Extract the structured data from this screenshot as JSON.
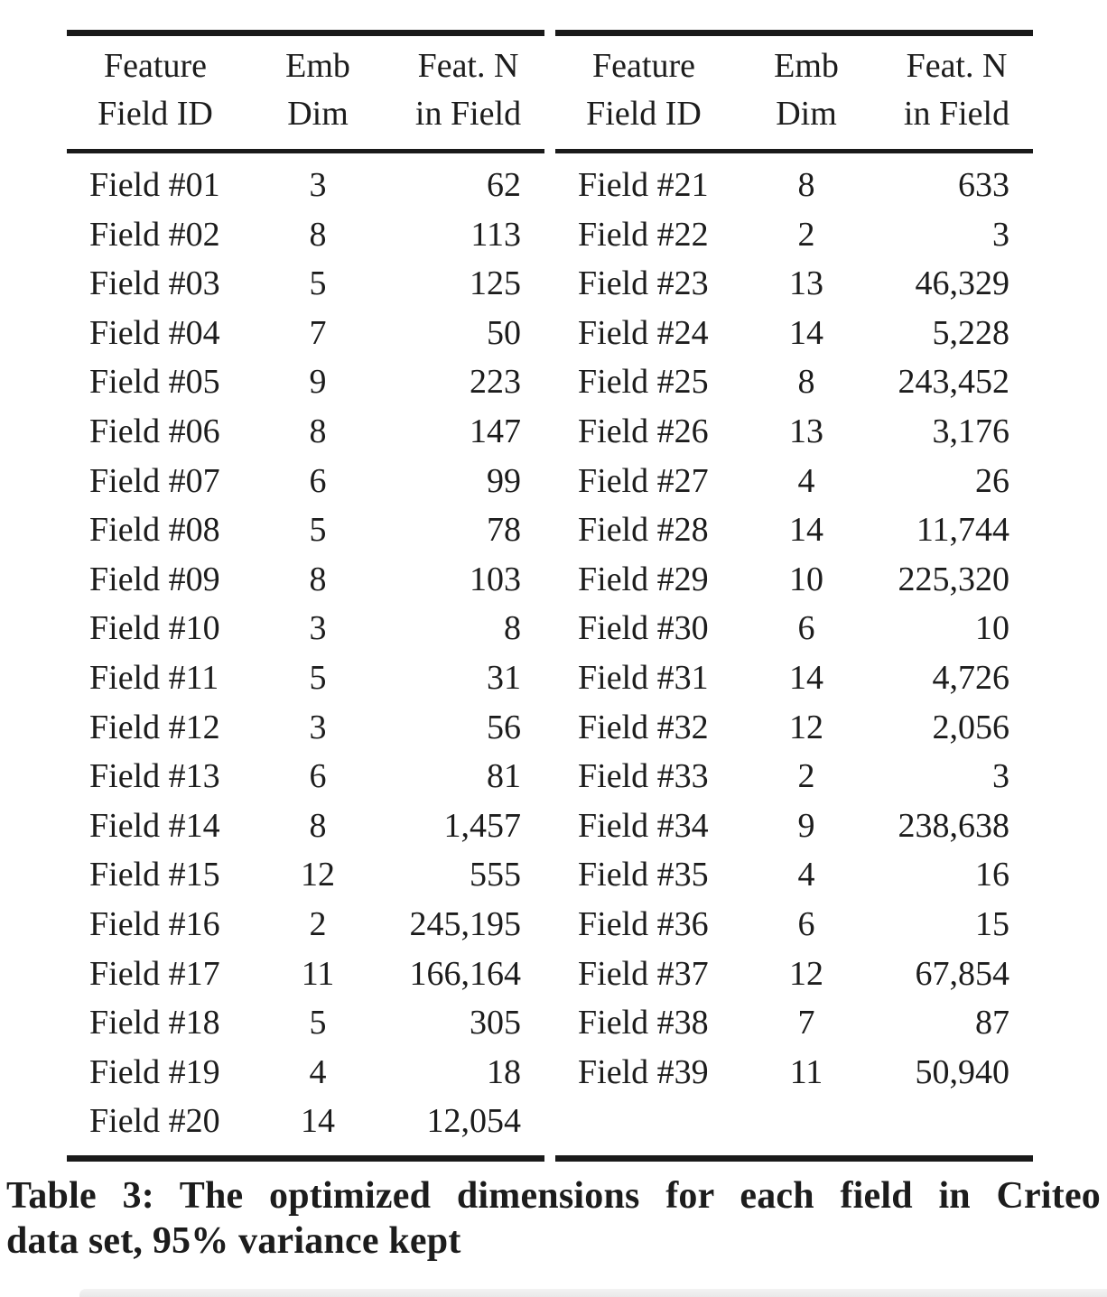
{
  "document": {
    "caption": {
      "line1": "Table 3: The optimized dimensions for each field in Criteo",
      "line2": "data set, 95% variance kept"
    }
  },
  "colors": {
    "text": "#1c1c1c",
    "rule": "#1a1a1a"
  },
  "table": {
    "header": {
      "col1": [
        "Feature",
        "Field ID"
      ],
      "col2": [
        "Emb",
        "Dim"
      ],
      "col3": [
        "Feat. N",
        "in Field"
      ]
    },
    "left_rows": [
      {
        "field": "Field #01",
        "dim": "3",
        "n": "62"
      },
      {
        "field": "Field #02",
        "dim": "8",
        "n": "113"
      },
      {
        "field": "Field #03",
        "dim": "5",
        "n": "125"
      },
      {
        "field": "Field #04",
        "dim": "7",
        "n": "50"
      },
      {
        "field": "Field #05",
        "dim": "9",
        "n": "223"
      },
      {
        "field": "Field #06",
        "dim": "8",
        "n": "147"
      },
      {
        "field": "Field #07",
        "dim": "6",
        "n": "99"
      },
      {
        "field": "Field #08",
        "dim": "5",
        "n": "78"
      },
      {
        "field": "Field #09",
        "dim": "8",
        "n": "103"
      },
      {
        "field": "Field #10",
        "dim": "3",
        "n": "8"
      },
      {
        "field": "Field #11",
        "dim": "5",
        "n": "31"
      },
      {
        "field": "Field #12",
        "dim": "3",
        "n": "56"
      },
      {
        "field": "Field #13",
        "dim": "6",
        "n": "81"
      },
      {
        "field": "Field #14",
        "dim": "8",
        "n": "1,457"
      },
      {
        "field": "Field #15",
        "dim": "12",
        "n": "555"
      },
      {
        "field": "Field #16",
        "dim": "2",
        "n": "245,195"
      },
      {
        "field": "Field #17",
        "dim": "11",
        "n": "166,164"
      },
      {
        "field": "Field #18",
        "dim": "5",
        "n": "305"
      },
      {
        "field": "Field #19",
        "dim": "4",
        "n": "18"
      },
      {
        "field": "Field #20",
        "dim": "14",
        "n": "12,054"
      }
    ],
    "right_rows": [
      {
        "field": "Field #21",
        "dim": "8",
        "n": "633"
      },
      {
        "field": "Field #22",
        "dim": "2",
        "n": "3"
      },
      {
        "field": "Field #23",
        "dim": "13",
        "n": "46,329"
      },
      {
        "field": "Field #24",
        "dim": "14",
        "n": "5,228"
      },
      {
        "field": "Field #25",
        "dim": "8",
        "n": "243,452"
      },
      {
        "field": "Field #26",
        "dim": "13",
        "n": "3,176"
      },
      {
        "field": "Field #27",
        "dim": "4",
        "n": "26"
      },
      {
        "field": "Field #28",
        "dim": "14",
        "n": "11,744"
      },
      {
        "field": "Field #29",
        "dim": "10",
        "n": "225,320"
      },
      {
        "field": "Field #30",
        "dim": "6",
        "n": "10"
      },
      {
        "field": "Field #31",
        "dim": "14",
        "n": "4,726"
      },
      {
        "field": "Field #32",
        "dim": "12",
        "n": "2,056"
      },
      {
        "field": "Field #33",
        "dim": "2",
        "n": "3"
      },
      {
        "field": "Field #34",
        "dim": "9",
        "n": "238,638"
      },
      {
        "field": "Field #35",
        "dim": "4",
        "n": "16"
      },
      {
        "field": "Field #36",
        "dim": "6",
        "n": "15"
      },
      {
        "field": "Field #37",
        "dim": "12",
        "n": "67,854"
      },
      {
        "field": "Field #38",
        "dim": "7",
        "n": "87"
      },
      {
        "field": "Field #39",
        "dim": "11",
        "n": "50,940"
      }
    ]
  }
}
